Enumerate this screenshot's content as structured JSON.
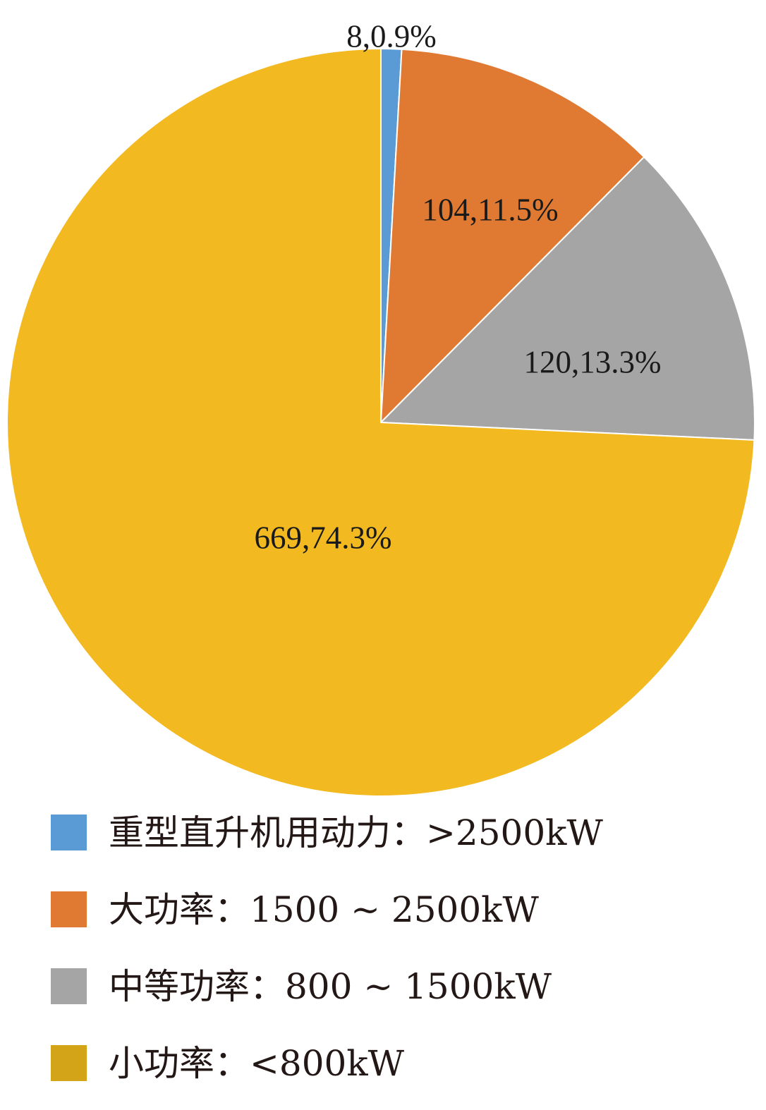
{
  "chart_data": {
    "type": "pie",
    "title": "",
    "start_angle_deg": 0,
    "direction": "clockwise",
    "slices": [
      {
        "name": "重型直升机用动力：>2500kW",
        "value": 8,
        "percent": 0.9,
        "label": "8,0.9%",
        "color": "#5b9bd5"
      },
      {
        "name": "大功率：1500 ~ 2500kW",
        "value": 104,
        "percent": 11.5,
        "label": "104,11.5%",
        "color": "#e07a33"
      },
      {
        "name": "中等功率：800 ~ 1500kW",
        "value": 120,
        "percent": 13.3,
        "label": "120,13.3%",
        "color": "#a5a5a5"
      },
      {
        "name": "小功率：<800kW",
        "value": 669,
        "percent": 74.3,
        "label": "669,74.3%",
        "color": "#f2b920"
      }
    ],
    "legend_position": "bottom",
    "legend": [
      {
        "label": "重型直升机用动力：>2500kW",
        "color": "#5b9bd5"
      },
      {
        "label": "大功率：1500 ~ 2500kW",
        "color": "#e07a33"
      },
      {
        "label": "中等功率：800 ~ 1500kW",
        "color": "#a5a5a5"
      },
      {
        "label": "小功率：<800kW",
        "color": "#d4a418"
      }
    ]
  }
}
